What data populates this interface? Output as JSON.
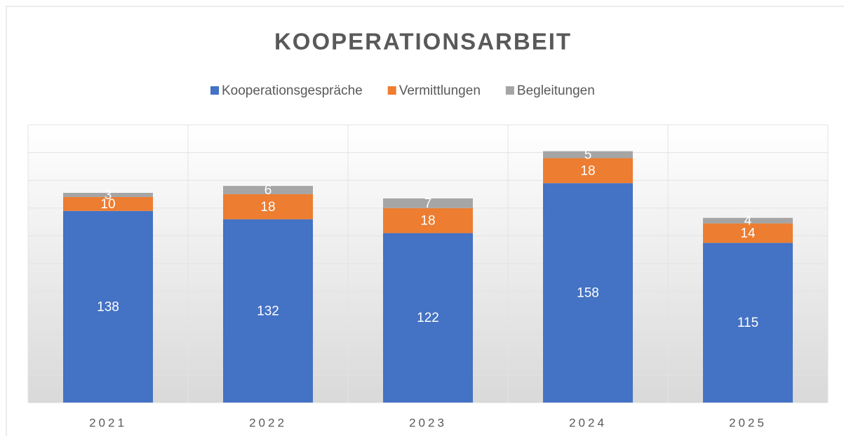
{
  "chart_data": {
    "type": "stacked_bar",
    "title": "KOOPERATIONSARBEIT",
    "categories": [
      "2021",
      "2022",
      "2023",
      "2024",
      "2025"
    ],
    "series": [
      {
        "name": "Kooperationsgespräche",
        "color": "#4472c4",
        "values": [
          138,
          132,
          122,
          158,
          115
        ]
      },
      {
        "name": "Vermittlungen",
        "color": "#ed7d31",
        "values": [
          10,
          18,
          18,
          18,
          14
        ]
      },
      {
        "name": "Begleitungen",
        "color": "#a5a5a5",
        "values": [
          3,
          6,
          7,
          5,
          4
        ]
      }
    ],
    "ylim": [
      0,
      200
    ],
    "yticks": [
      0,
      20,
      40,
      60,
      80,
      100,
      120,
      140,
      160,
      180,
      200
    ],
    "grid": true,
    "legend": "top"
  }
}
